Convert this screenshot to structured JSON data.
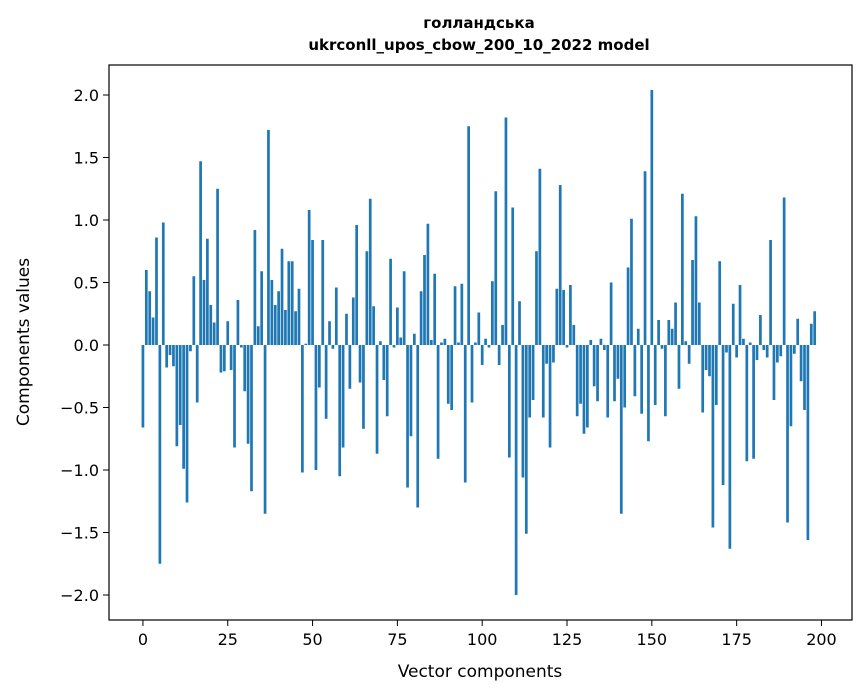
{
  "chart_data": {
    "type": "bar",
    "title": "голландська",
    "subtitle": "ukrconll_upos_cbow_200_10_2022 model",
    "xlabel": "Vector components",
    "ylabel": "Components values",
    "xlim": [
      -10,
      209
    ],
    "ylim": [
      -2.2,
      2.24
    ],
    "xticks": [
      0,
      25,
      50,
      75,
      100,
      125,
      150,
      175,
      200
    ],
    "yticks": [
      -2.0,
      -1.5,
      -1.0,
      -0.5,
      0.0,
      0.5,
      1.0,
      1.5,
      2.0
    ],
    "xtick_labels": [
      "0",
      "25",
      "50",
      "75",
      "100",
      "125",
      "150",
      "175",
      "200"
    ],
    "ytick_labels": [
      "−2.0",
      "−1.5",
      "−1.0",
      "−0.5",
      "0.0",
      "0.5",
      "1.0",
      "1.5",
      "2.0"
    ],
    "grid": false,
    "bar_color": "#1f77b4",
    "x_start": 0,
    "values": [
      -0.66,
      0.6,
      0.43,
      0.22,
      0.86,
      -1.75,
      0.98,
      -0.18,
      -0.08,
      -0.17,
      -0.81,
      -0.64,
      -0.99,
      -1.26,
      -0.05,
      0.55,
      -0.46,
      1.47,
      0.52,
      0.85,
      0.32,
      0.18,
      1.25,
      -0.22,
      -0.21,
      0.19,
      -0.2,
      -0.82,
      0.36,
      -0.02,
      -0.37,
      -0.79,
      -1.17,
      0.92,
      0.15,
      0.59,
      -1.35,
      1.72,
      0.52,
      0.32,
      0.43,
      0.77,
      0.28,
      0.67,
      0.67,
      0.27,
      0.45,
      -1.02,
      0.01,
      1.08,
      0.84,
      -1.0,
      -0.34,
      0.84,
      -0.59,
      0.19,
      -0.03,
      0.46,
      -1.05,
      -0.82,
      0.25,
      -0.35,
      0.38,
      0.96,
      -0.3,
      -0.67,
      0.75,
      1.17,
      0.31,
      -0.87,
      0.03,
      -0.28,
      -0.57,
      0.69,
      -0.02,
      0.3,
      0.06,
      0.59,
      -1.14,
      -0.73,
      0.09,
      -1.3,
      0.43,
      0.72,
      0.97,
      0.04,
      0.57,
      -0.91,
      0.02,
      0.05,
      -0.47,
      -0.52,
      0.47,
      0.02,
      0.49,
      -1.1,
      1.75,
      -0.46,
      0.02,
      0.26,
      -0.16,
      0.05,
      -0.02,
      0.51,
      1.23,
      -0.16,
      0.16,
      1.82,
      -0.9,
      1.1,
      -2.0,
      0.35,
      -1.06,
      -1.51,
      -0.58,
      -0.44,
      0.75,
      1.41,
      -0.58,
      -0.15,
      -0.82,
      -0.14,
      0.45,
      1.28,
      0.44,
      -0.02,
      0.48,
      0.16,
      -0.57,
      -0.47,
      -0.71,
      -0.66,
      0.04,
      -0.33,
      -0.45,
      0.05,
      -0.04,
      -0.58,
      0.5,
      -0.45,
      -0.27,
      -1.35,
      -0.5,
      0.62,
      1.01,
      -0.41,
      0.13,
      -0.55,
      1.39,
      -0.77,
      2.04,
      -0.48,
      0.2,
      -0.03,
      -0.57,
      0.2,
      0.13,
      0.34,
      -0.35,
      1.21,
      0.03,
      -0.15,
      0.68,
      1.03,
      0.34,
      -0.54,
      -0.2,
      -0.25,
      -1.46,
      -0.48,
      0.67,
      -1.12,
      -0.06,
      -1.63,
      0.33,
      -0.1,
      0.48,
      0.05,
      -0.93,
      0.02,
      -0.91,
      -0.12,
      0.24,
      -0.04,
      -0.1,
      0.84,
      -0.44,
      -0.14,
      -0.09,
      1.18,
      -1.42,
      -0.65,
      -0.07,
      0.21,
      -0.29,
      -0.52,
      -1.56,
      0.17,
      0.27
    ]
  }
}
